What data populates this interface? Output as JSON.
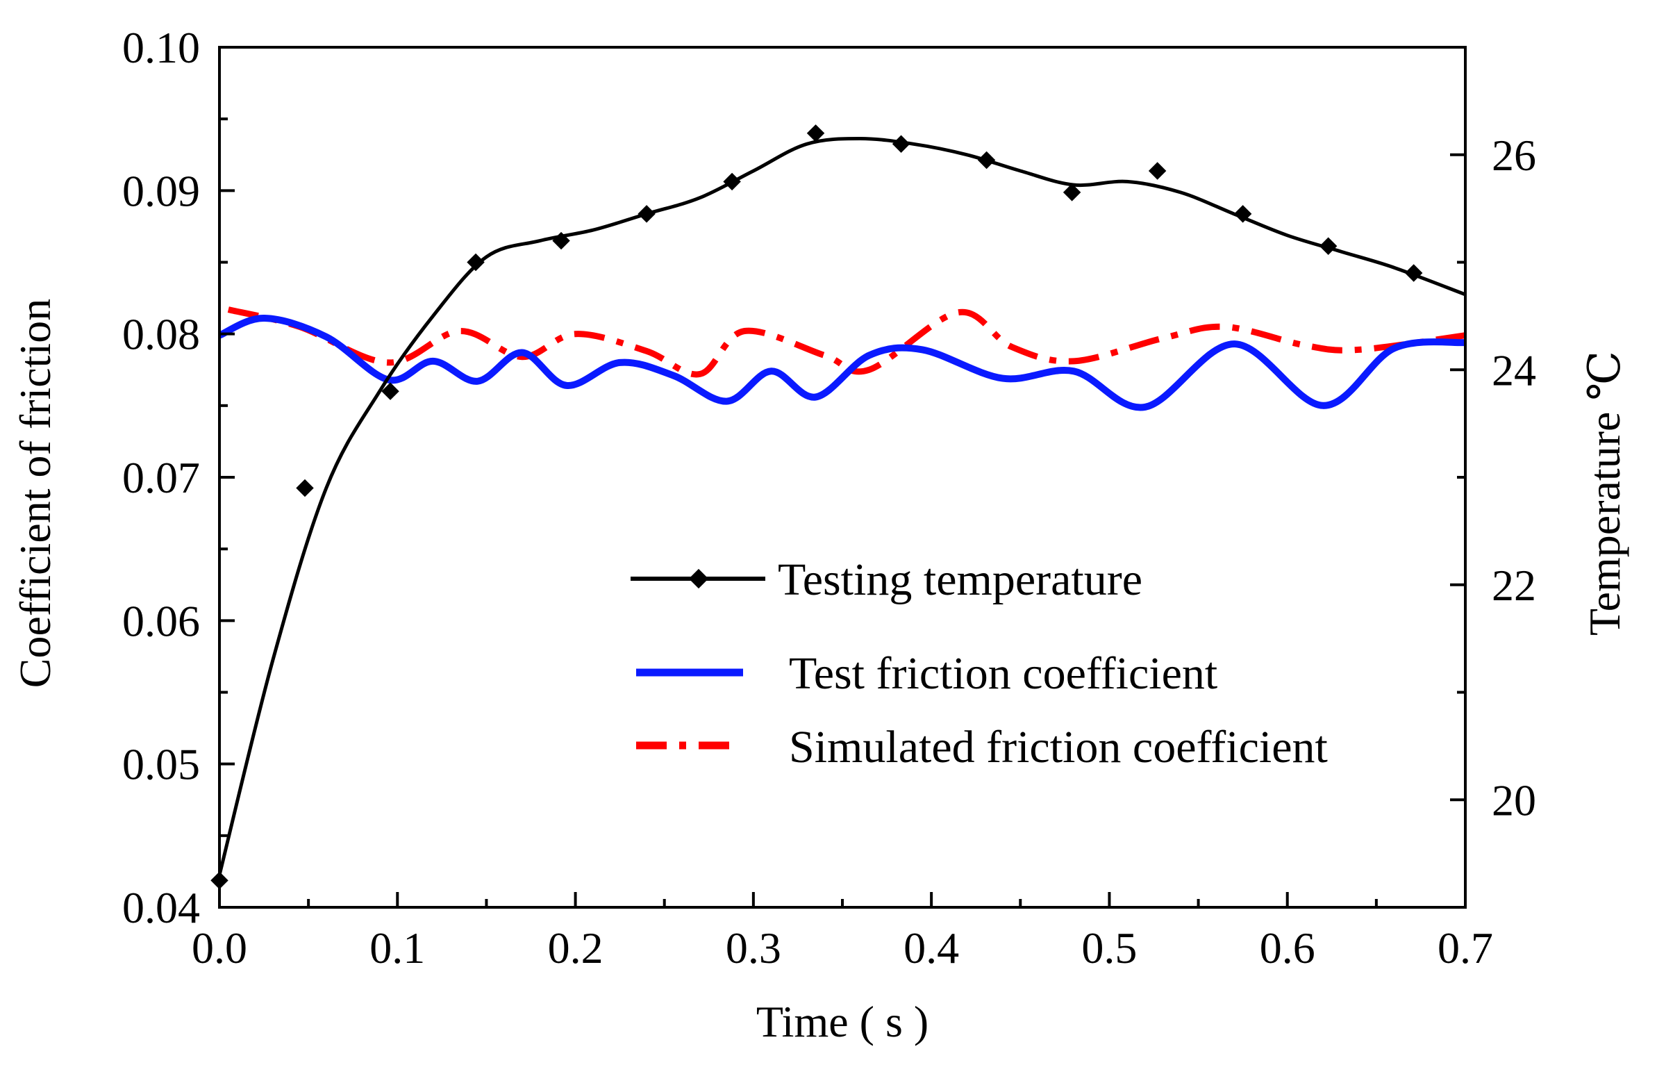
{
  "chart_data": {
    "type": "line",
    "title": "",
    "xlabel": "Time ( s )",
    "ylabel": "Coefficient of friction",
    "y2label": "Temperature ℃",
    "xlim": [
      0.0,
      0.7
    ],
    "ylim": [
      0.04,
      0.1
    ],
    "y2lim": [
      19.0,
      27.0
    ],
    "x_ticks": [
      "0.0",
      "0.1",
      "0.2",
      "0.3",
      "0.4",
      "0.5",
      "0.6",
      "0.7"
    ],
    "y_ticks": [
      "0.04",
      "0.05",
      "0.06",
      "0.07",
      "0.08",
      "0.09",
      "0.10"
    ],
    "y2_ticks": [
      "20",
      "22",
      "24",
      "26"
    ],
    "legend": {
      "placement": "lower-right",
      "entries": [
        "Testing temperature",
        "Test friction coefficient",
        "Simulated friction coefficient"
      ]
    },
    "series": [
      {
        "name": "Testing temperature",
        "axis": "right",
        "color": "#000000",
        "style": "solid-with-diamond-markers",
        "points": [
          [
            0.0,
            19.25
          ],
          [
            0.048,
            22.9
          ],
          [
            0.096,
            23.8
          ],
          [
            0.144,
            25.0
          ],
          [
            0.192,
            25.2
          ],
          [
            0.24,
            25.45
          ],
          [
            0.288,
            25.75
          ],
          [
            0.335,
            26.2
          ],
          [
            0.383,
            26.1
          ],
          [
            0.431,
            25.95
          ],
          [
            0.479,
            25.65
          ],
          [
            0.527,
            25.85
          ],
          [
            0.575,
            25.45
          ],
          [
            0.623,
            25.15
          ],
          [
            0.671,
            24.9
          ]
        ],
        "curve": [
          [
            0.0,
            19.3
          ],
          [
            0.03,
            21.3
          ],
          [
            0.06,
            22.9
          ],
          [
            0.09,
            23.8
          ],
          [
            0.12,
            24.5
          ],
          [
            0.15,
            25.05
          ],
          [
            0.18,
            25.2
          ],
          [
            0.21,
            25.3
          ],
          [
            0.24,
            25.45
          ],
          [
            0.27,
            25.6
          ],
          [
            0.3,
            25.85
          ],
          [
            0.33,
            26.1
          ],
          [
            0.36,
            26.15
          ],
          [
            0.39,
            26.1
          ],
          [
            0.42,
            26.0
          ],
          [
            0.45,
            25.85
          ],
          [
            0.48,
            25.72
          ],
          [
            0.51,
            25.75
          ],
          [
            0.54,
            25.65
          ],
          [
            0.57,
            25.45
          ],
          [
            0.6,
            25.25
          ],
          [
            0.63,
            25.1
          ],
          [
            0.66,
            24.95
          ],
          [
            0.7,
            24.7
          ]
        ]
      },
      {
        "name": "Test friction coefficient",
        "axis": "left",
        "color": "#0a1aff",
        "style": "solid",
        "points": [
          [
            0.0,
            0.0799
          ],
          [
            0.025,
            0.0811
          ],
          [
            0.06,
            0.0798
          ],
          [
            0.095,
            0.0768
          ],
          [
            0.12,
            0.0781
          ],
          [
            0.145,
            0.0767
          ],
          [
            0.17,
            0.0787
          ],
          [
            0.195,
            0.0764
          ],
          [
            0.225,
            0.078
          ],
          [
            0.255,
            0.0771
          ],
          [
            0.285,
            0.0753
          ],
          [
            0.31,
            0.0774
          ],
          [
            0.335,
            0.0756
          ],
          [
            0.365,
            0.0785
          ],
          [
            0.395,
            0.0789
          ],
          [
            0.44,
            0.0769
          ],
          [
            0.48,
            0.0774
          ],
          [
            0.52,
            0.0749
          ],
          [
            0.57,
            0.0793
          ],
          [
            0.62,
            0.075
          ],
          [
            0.66,
            0.079
          ],
          [
            0.7,
            0.0794
          ]
        ]
      },
      {
        "name": "Simulated friction coefficient",
        "axis": "left",
        "color": "#ff0000",
        "style": "dash-dot",
        "points": [
          [
            0.005,
            0.0817
          ],
          [
            0.045,
            0.0805
          ],
          [
            0.095,
            0.078
          ],
          [
            0.135,
            0.0802
          ],
          [
            0.17,
            0.0784
          ],
          [
            0.2,
            0.08
          ],
          [
            0.24,
            0.0788
          ],
          [
            0.27,
            0.0772
          ],
          [
            0.295,
            0.0802
          ],
          [
            0.34,
            0.0785
          ],
          [
            0.365,
            0.0775
          ],
          [
            0.415,
            0.0815
          ],
          [
            0.445,
            0.0791
          ],
          [
            0.48,
            0.0781
          ],
          [
            0.53,
            0.0797
          ],
          [
            0.565,
            0.0805
          ],
          [
            0.61,
            0.0792
          ],
          [
            0.64,
            0.0789
          ],
          [
            0.7,
            0.0799
          ]
        ]
      }
    ]
  }
}
